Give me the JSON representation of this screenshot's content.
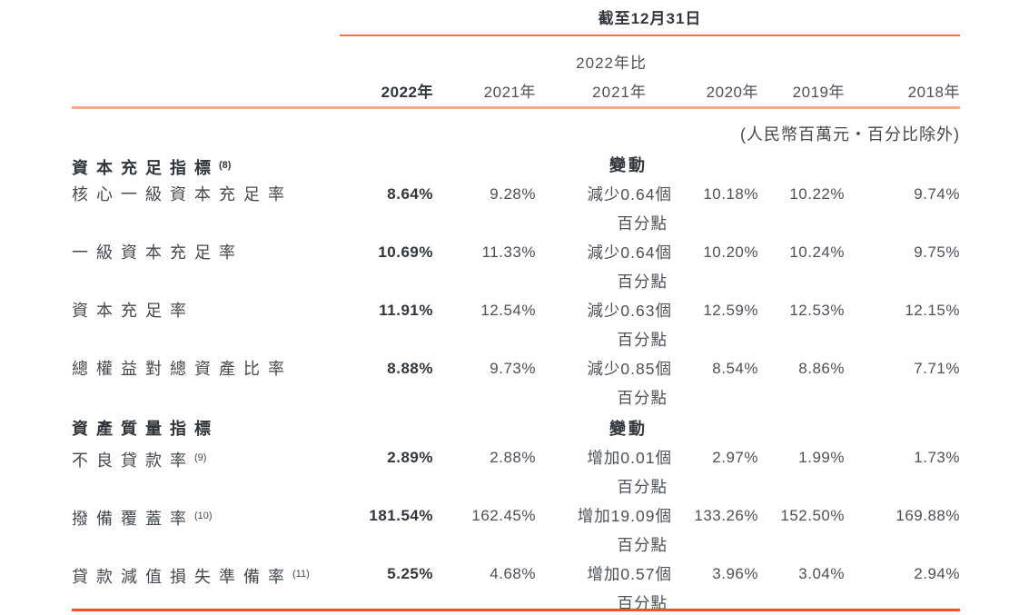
{
  "header": {
    "spanner": "截至12月31日",
    "units_note": "(人民幣百萬元・百分比除外)",
    "columns": {
      "y2022": "2022年",
      "y2021": "2021年",
      "change_l1": "2022年比",
      "change_l2": "2021年",
      "y2020": "2020年",
      "y2019": "2019年",
      "y2018": "2018年"
    },
    "change_word": "變動"
  },
  "colors": {
    "top_rule": "#f1713c",
    "mid_rule": "#f8a88a",
    "bottom_rule": "#ef5526",
    "text_regular": "#4d5156",
    "text_bold": "#32363b"
  },
  "sections": [
    {
      "title": "資本充足指標",
      "sup": "(8)",
      "rows": [
        {
          "label": "核心一級資本充足率",
          "sup": "",
          "v2022": "8.64%",
          "v2021": "9.28%",
          "change_l1": "減少0.64個",
          "change_l2": "百分點",
          "v2020": "10.18%",
          "v2019": "10.22%",
          "v2018": "9.74%"
        },
        {
          "label": "一級資本充足率",
          "sup": "",
          "v2022": "10.69%",
          "v2021": "11.33%",
          "change_l1": "減少0.64個",
          "change_l2": "百分點",
          "v2020": "10.20%",
          "v2019": "10.24%",
          "v2018": "9.75%"
        },
        {
          "label": "資本充足率",
          "sup": "",
          "v2022": "11.91%",
          "v2021": "12.54%",
          "change_l1": "減少0.63個",
          "change_l2": "百分點",
          "v2020": "12.59%",
          "v2019": "12.53%",
          "v2018": "12.15%"
        },
        {
          "label": "總權益對總資產比率",
          "sup": "",
          "v2022": "8.88%",
          "v2021": "9.73%",
          "change_l1": "減少0.85個",
          "change_l2": "百分點",
          "v2020": "8.54%",
          "v2019": "8.86%",
          "v2018": "7.71%"
        }
      ]
    },
    {
      "title": "資產質量指標",
      "sup": "",
      "rows": [
        {
          "label": "不良貸款率",
          "sup": "(9)",
          "v2022": "2.89%",
          "v2021": "2.88%",
          "change_l1": "增加0.01個",
          "change_l2": "百分點",
          "v2020": "2.97%",
          "v2019": "1.99%",
          "v2018": "1.73%"
        },
        {
          "label": "撥備覆蓋率",
          "sup": "(10)",
          "v2022": "181.54%",
          "v2021": "162.45%",
          "change_l1": "增加19.09個",
          "change_l2": "百分點",
          "v2020": "133.26%",
          "v2019": "152.50%",
          "v2018": "169.88%"
        },
        {
          "label": "貸款減值損失準備率",
          "sup": "(11)",
          "v2022": "5.25%",
          "v2021": "4.68%",
          "change_l1": "增加0.57個",
          "change_l2": "百分點",
          "v2020": "3.96%",
          "v2019": "3.04%",
          "v2018": "2.94%"
        }
      ]
    }
  ]
}
